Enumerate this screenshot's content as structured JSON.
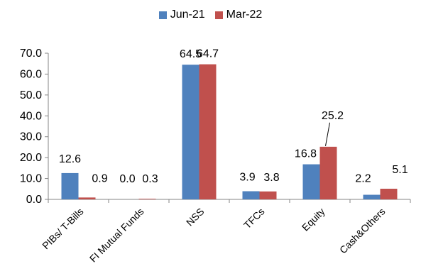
{
  "chart_data": {
    "type": "bar",
    "categories": [
      "PIBs/ T-Bills",
      "FI Mutual Funds",
      "NSS",
      "TFCs",
      "Equity",
      "Cash&Others"
    ],
    "series": [
      {
        "name": "Jun-21",
        "color": "#4F81BD",
        "values": [
          12.6,
          0.0,
          64.5,
          3.9,
          16.8,
          2.2
        ],
        "labels": [
          "12.6",
          "0.0",
          "64.5",
          "3.9",
          "16.8",
          "2.2"
        ]
      },
      {
        "name": "Mar-22",
        "color": "#C0504D",
        "values": [
          0.9,
          0.3,
          64.7,
          3.8,
          25.2,
          5.1
        ],
        "labels": [
          "0.9",
          "0.3",
          "64.7",
          "3.8",
          "25.2",
          "5.1"
        ]
      }
    ],
    "ylim": [
      0,
      70
    ],
    "yticks": [
      "0.0",
      "10.0",
      "20.0",
      "30.0",
      "40.0",
      "50.0",
      "60.0",
      "70.0"
    ],
    "legend_position": "top-center",
    "grid": false
  }
}
